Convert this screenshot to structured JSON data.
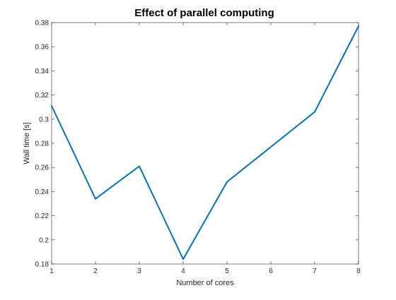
{
  "chart_data": {
    "type": "line",
    "title": "Effect of parallel computing",
    "xlabel": "Number of cores",
    "ylabel": "Wall time [s]",
    "xlim": [
      1,
      8
    ],
    "ylim": [
      0.18,
      0.38
    ],
    "xticks": [
      "1",
      "2",
      "3",
      "4",
      "5",
      "6",
      "7",
      "8"
    ],
    "yticks": [
      "0.18",
      "0.2",
      "0.22",
      "0.24",
      "0.26",
      "0.28",
      "0.3",
      "0.32",
      "0.34",
      "0.36",
      "0.38"
    ],
    "grid": false,
    "series": [
      {
        "x": [
          1,
          2,
          3,
          4,
          5,
          7,
          8
        ],
        "y": [
          0.311,
          0.234,
          0.261,
          0.184,
          0.248,
          0.306,
          0.377
        ],
        "color": "#0072BD"
      }
    ]
  }
}
